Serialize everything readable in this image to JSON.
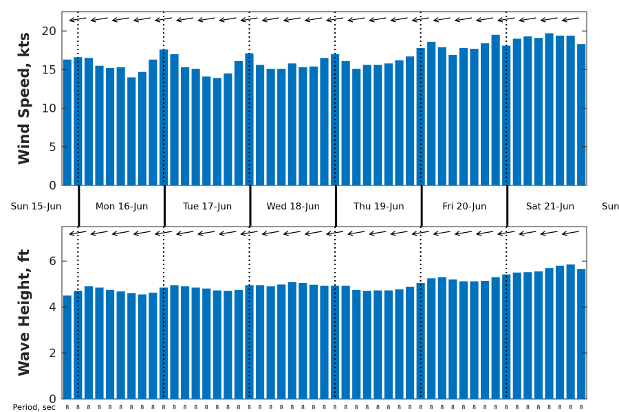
{
  "chart_data": [
    {
      "type": "bar",
      "name": "wind-speed",
      "ylabel": "Wind Speed, kts",
      "ylim": [
        0,
        22.5
      ],
      "yticks": [
        0,
        5,
        10,
        15,
        20
      ],
      "color": "#0072BD",
      "values": [
        16.3,
        16.6,
        16.5,
        15.5,
        15.2,
        15.3,
        14.0,
        14.7,
        16.3,
        17.6,
        17.0,
        15.3,
        15.1,
        14.1,
        13.9,
        14.5,
        16.1,
        17.1,
        15.6,
        15.1,
        15.1,
        15.8,
        15.3,
        15.4,
        16.5,
        17.0,
        16.1,
        15.1,
        15.6,
        15.6,
        15.8,
        16.2,
        16.7,
        17.8,
        18.6,
        17.9,
        16.9,
        17.8,
        17.7,
        18.4,
        19.5,
        18.1,
        19.0,
        19.3,
        19.1,
        19.7,
        19.4,
        19.4,
        18.3
      ],
      "direction_arrows": "wind direction arrows pointing left, one per 3-hour interval"
    },
    {
      "type": "bar",
      "name": "wave-height",
      "ylabel": "Wave Height, ft",
      "ylim": [
        0,
        7.5
      ],
      "yticks": [
        0,
        2,
        4,
        6
      ],
      "color": "#0072BD",
      "values": [
        4.5,
        4.7,
        4.9,
        4.85,
        4.75,
        4.68,
        4.6,
        4.55,
        4.62,
        4.85,
        4.95,
        4.9,
        4.85,
        4.8,
        4.72,
        4.7,
        4.75,
        4.95,
        4.95,
        4.9,
        4.98,
        5.08,
        5.05,
        4.97,
        4.93,
        4.93,
        4.93,
        4.75,
        4.7,
        4.72,
        4.72,
        4.77,
        4.88,
        5.05,
        5.25,
        5.3,
        5.2,
        5.12,
        5.12,
        5.14,
        5.3,
        5.42,
        5.5,
        5.52,
        5.55,
        5.7,
        5.8,
        5.85,
        5.65
      ]
    }
  ],
  "days": [
    "Sun 15-Jun",
    "Mon 16-Jun",
    "Tue 17-Jun",
    "Wed 18-Jun",
    "Thu 19-Jun",
    "Fri 20-Jun",
    "Sat 21-Jun",
    "Sun"
  ],
  "day_boundary_indices": [
    1,
    9,
    17,
    25,
    33,
    41
  ],
  "period": {
    "title": "Period, sec",
    "values": [
      "8",
      "8",
      "8",
      "8",
      "8",
      "8",
      "8",
      "8",
      "8",
      "8",
      "8",
      "8",
      "8",
      "8",
      "8",
      "8",
      "8",
      "8",
      "8",
      "8",
      "8",
      "8",
      "8",
      "8",
      "8",
      "8",
      "8",
      "8",
      "8",
      "8",
      "8",
      "8",
      "8",
      "8",
      "8",
      "8",
      "8",
      "8",
      "8",
      "8",
      "8",
      "8",
      "8",
      "8",
      "8",
      "8",
      "8",
      "8",
      "8"
    ]
  }
}
